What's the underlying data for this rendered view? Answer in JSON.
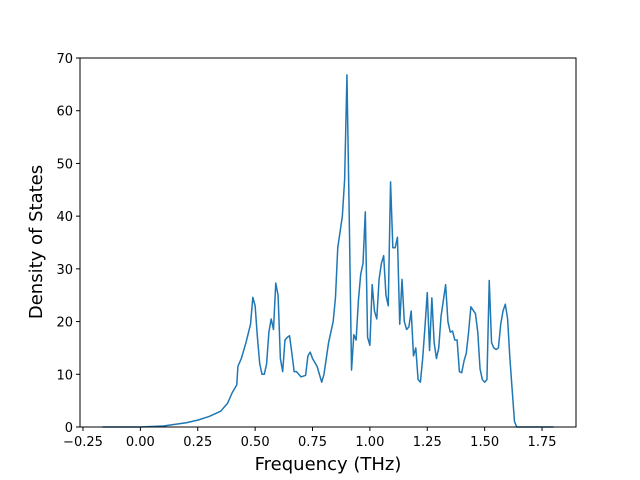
{
  "chart_data": {
    "type": "line",
    "xlabel": "Frequency (THz)",
    "ylabel": "Density of States",
    "x": [
      -0.165,
      0.0,
      0.1,
      0.15,
      0.2,
      0.25,
      0.3,
      0.35,
      0.38,
      0.4,
      0.42,
      0.425,
      0.44,
      0.46,
      0.48,
      0.49,
      0.5,
      0.51,
      0.52,
      0.53,
      0.54,
      0.55,
      0.56,
      0.57,
      0.58,
      0.59,
      0.6,
      0.61,
      0.62,
      0.63,
      0.64,
      0.65,
      0.66,
      0.67,
      0.68,
      0.69,
      0.7,
      0.72,
      0.73,
      0.74,
      0.75,
      0.77,
      0.79,
      0.8,
      0.82,
      0.84,
      0.85,
      0.86,
      0.88,
      0.89,
      0.9,
      0.91,
      0.92,
      0.93,
      0.94,
      0.95,
      0.96,
      0.97,
      0.98,
      0.99,
      1.0,
      1.01,
      1.02,
      1.03,
      1.04,
      1.05,
      1.06,
      1.07,
      1.08,
      1.09,
      1.1,
      1.11,
      1.12,
      1.13,
      1.14,
      1.15,
      1.16,
      1.17,
      1.18,
      1.19,
      1.2,
      1.21,
      1.22,
      1.23,
      1.24,
      1.25,
      1.26,
      1.27,
      1.28,
      1.29,
      1.3,
      1.31,
      1.33,
      1.34,
      1.35,
      1.36,
      1.37,
      1.38,
      1.39,
      1.4,
      1.41,
      1.42,
      1.43,
      1.44,
      1.46,
      1.47,
      1.48,
      1.49,
      1.5,
      1.51,
      1.52,
      1.53,
      1.54,
      1.55,
      1.56,
      1.57,
      1.58,
      1.59,
      1.6,
      1.61,
      1.62,
      1.63,
      1.64,
      1.8
    ],
    "series": [
      {
        "color": "#1f77b4",
        "values": [
          0,
          0,
          0.2,
          0.5,
          0.8,
          1.3,
          2.0,
          3.0,
          4.5,
          6.5,
          8,
          11.5,
          13,
          16,
          19.5,
          24.6,
          23,
          17,
          12,
          10,
          10,
          12,
          18,
          20.5,
          18.5,
          27.3,
          25,
          13,
          10.5,
          16.5,
          17,
          17.3,
          14,
          10.5,
          10.5,
          10,
          9.5,
          9.8,
          13.5,
          14.2,
          13,
          11.5,
          8.5,
          10,
          16,
          20,
          24.5,
          34,
          40,
          47,
          66.8,
          40,
          10.8,
          17.5,
          16.5,
          24,
          29,
          31,
          40.8,
          17,
          15.5,
          27,
          22,
          20.5,
          28,
          31,
          32.5,
          25,
          23,
          46.5,
          34,
          34,
          36,
          19.5,
          28,
          20,
          18.5,
          19,
          22,
          13.5,
          15,
          9,
          8.5,
          13,
          19,
          25.5,
          14.5,
          24.5,
          16,
          13,
          15,
          21,
          27,
          20,
          18,
          18.2,
          16.5,
          16.5,
          10.5,
          10.3,
          12.5,
          14,
          18,
          22.8,
          21.5,
          18,
          11,
          9,
          8.5,
          9,
          27.8,
          16,
          15,
          14.7,
          15,
          19.5,
          22,
          23.3,
          20.5,
          13,
          7,
          1,
          0,
          0
        ]
      }
    ],
    "xlim": [
      -0.263,
      1.898
    ],
    "ylim": [
      0,
      70
    ],
    "xticks": [
      {
        "value": -0.25,
        "label": "−0.25"
      },
      {
        "value": 0,
        "label": "0.00"
      },
      0.25,
      {
        "value": 0.5,
        "label": "0.50"
      },
      0.75,
      {
        "value": 1,
        "label": "1.00"
      },
      1.25,
      {
        "value": 1.5,
        "label": "1.50"
      },
      1.75
    ],
    "yticks": [
      0,
      10,
      20,
      30,
      40,
      50,
      60,
      70
    ]
  }
}
